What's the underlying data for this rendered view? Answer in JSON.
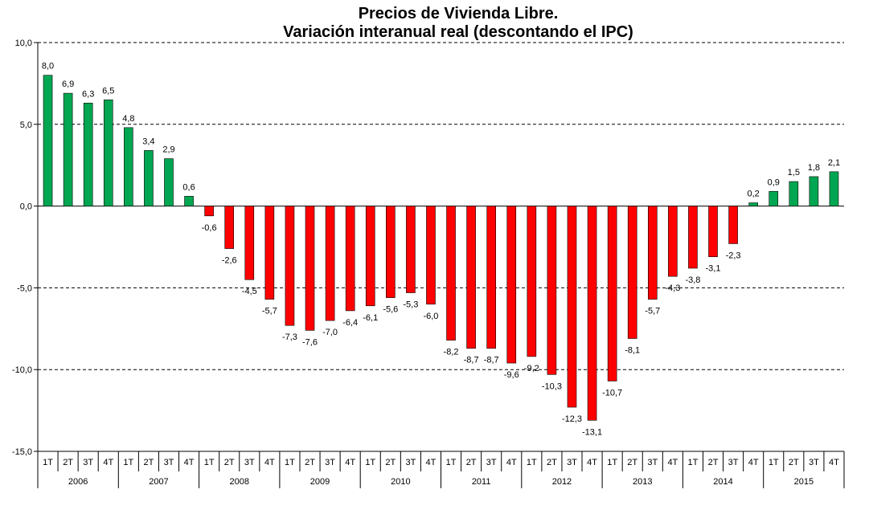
{
  "chart_data": {
    "type": "bar",
    "title": "Precios de Vivienda Libre.",
    "subtitle": "Variación interanual real (descontando el IPC)",
    "xlabel": "",
    "ylabel": "",
    "ylim": [
      -15,
      10
    ],
    "yticks": [
      "10,0",
      "5,0",
      "0,0",
      "-5,0",
      "-10,0",
      "-15,0"
    ],
    "ytick_values": [
      10,
      5,
      0,
      -5,
      -10,
      -15
    ],
    "grid": true,
    "legend": "none",
    "quarters": [
      "1T",
      "2T",
      "3T",
      "4T"
    ],
    "years": [
      "2006",
      "2007",
      "2008",
      "2009",
      "2010",
      "2011",
      "2012",
      "2013",
      "2014",
      "2015"
    ],
    "values": [
      8.0,
      6.9,
      6.3,
      6.5,
      4.8,
      3.4,
      2.9,
      0.6,
      -0.6,
      -2.6,
      -4.5,
      -5.7,
      -7.3,
      -7.6,
      -7.0,
      -6.4,
      -6.1,
      -5.6,
      -5.3,
      -6.0,
      -8.2,
      -8.7,
      -8.7,
      -9.6,
      -9.2,
      -10.3,
      -12.3,
      -13.1,
      -10.7,
      -8.1,
      -5.7,
      -4.3,
      -3.8,
      -3.1,
      -2.3,
      0.2,
      0.9,
      1.5,
      1.8,
      2.1
    ],
    "labels": [
      "8,0",
      "6,9",
      "6,3",
      "6,5",
      "4,8",
      "3,4",
      "2,9",
      "0,6",
      "-0,6",
      "-2,6",
      "-4,5",
      "-5,7",
      "-7,3",
      "-7,6",
      "-7,0",
      "-6,4",
      "-6,1",
      "-5,6",
      "-5,3",
      "-6,0",
      "-8,2",
      "-8,7",
      "-8,7",
      "-9,6",
      "-9,2",
      "-10,3",
      "-12,3",
      "-13,1",
      "-10,7",
      "-8,1",
      "-5,7",
      "-4,3",
      "-3,8",
      "-3,1",
      "-2,3",
      "0,2",
      "0,9",
      "1,5",
      "1,8",
      "2,1"
    ],
    "colors": {
      "positive": "#00A651",
      "negative": "#FF0000",
      "grid": "#000000",
      "outline": "#000000"
    }
  }
}
